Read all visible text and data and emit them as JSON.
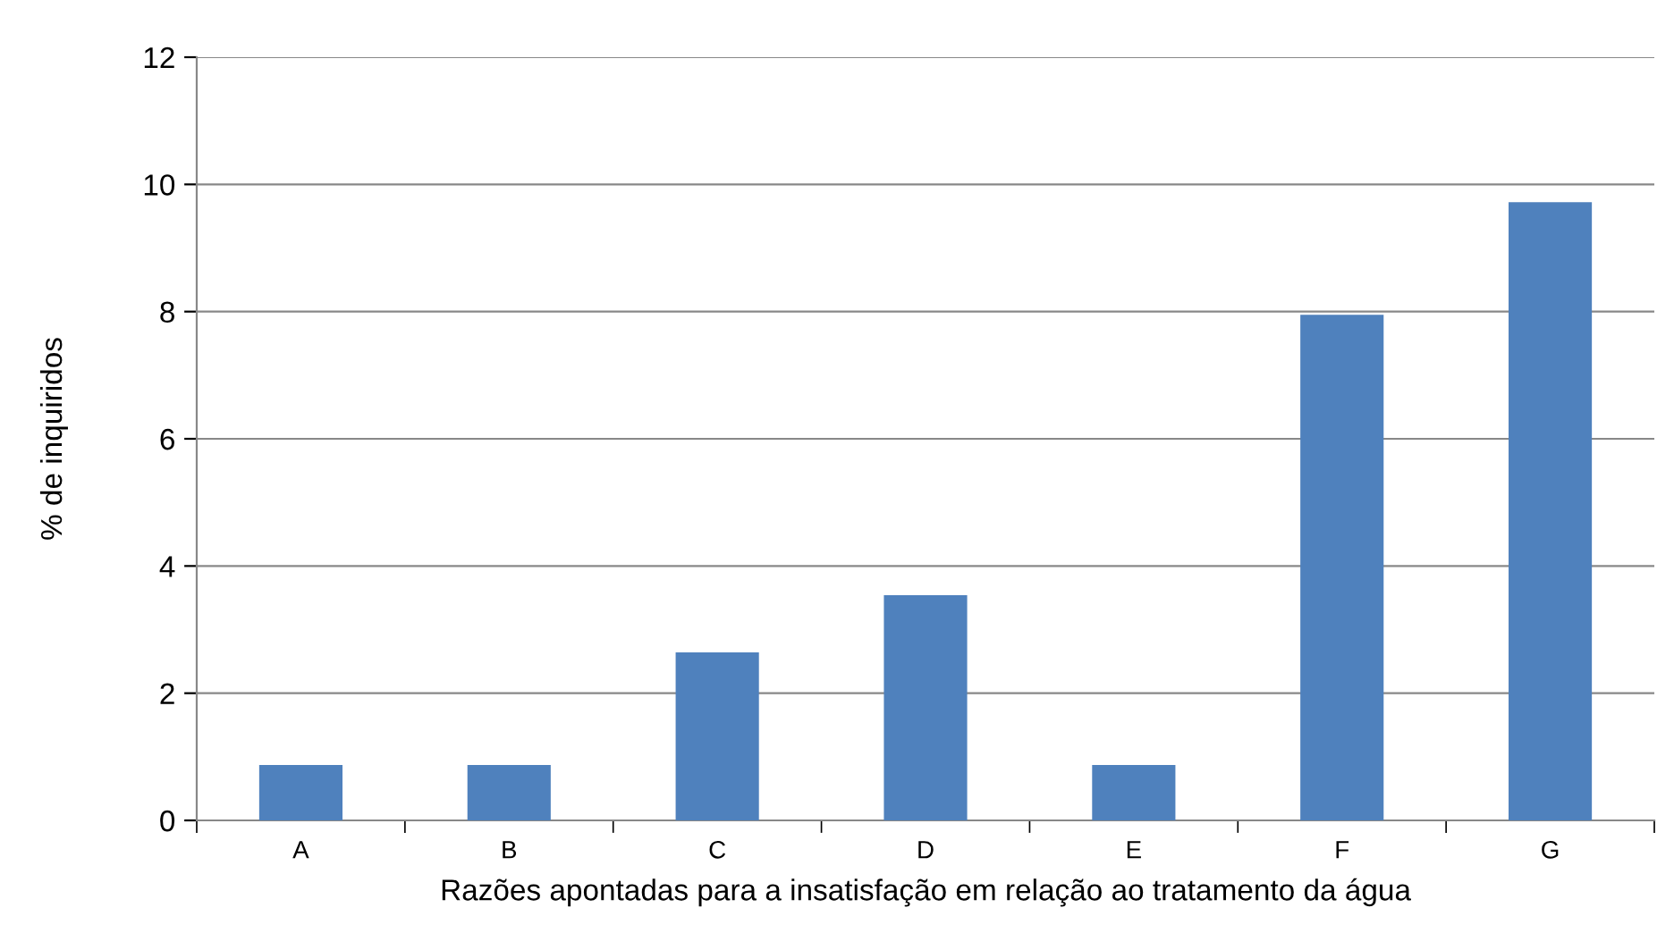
{
  "chart_data": {
    "type": "bar",
    "xlabel": "Razões apontadas para a insatisfação em relação ao tratamento da água",
    "ylabel": "% de inquiridos",
    "categories": [
      "A",
      "B",
      "C",
      "D",
      "E",
      "F",
      "G"
    ],
    "values": [
      0.87,
      0.87,
      2.64,
      3.54,
      0.87,
      7.95,
      9.72
    ],
    "color": "#4f81bd",
    "ylim": [
      0,
      12
    ],
    "yticks": [
      0,
      2,
      4,
      6,
      8,
      10,
      12
    ],
    "grid": "y",
    "legend": false
  }
}
